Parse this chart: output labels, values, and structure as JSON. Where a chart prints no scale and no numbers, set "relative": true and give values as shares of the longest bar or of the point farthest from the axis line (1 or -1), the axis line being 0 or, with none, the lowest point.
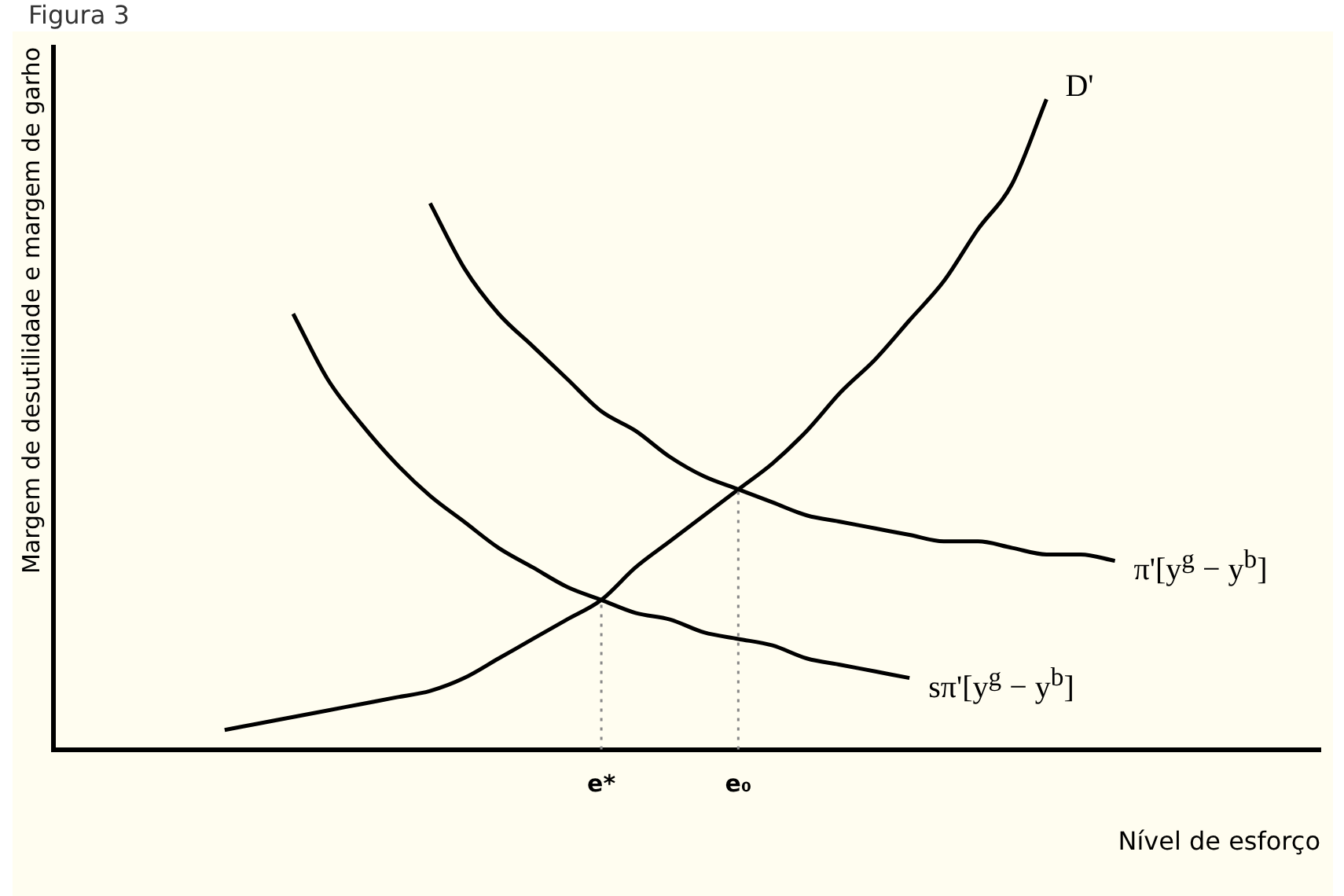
{
  "chart_data": {
    "type": "line",
    "title": "Figura 3",
    "xlabel": "Nível de esforço",
    "ylabel": "Margem de desutilidade e margem de garho",
    "relative": true,
    "legend": false,
    "grid": false,
    "marker": "none",
    "line_style": "solid",
    "categories": [
      null,
      null,
      null,
      null,
      null,
      null,
      null,
      null,
      null,
      null,
      null,
      null,
      null,
      null,
      null,
      null,
      "e*",
      null,
      null,
      null,
      "e₀",
      null,
      null,
      null,
      null,
      null,
      null,
      null,
      null,
      null,
      null,
      null,
      null,
      null,
      null,
      null,
      null,
      null
    ],
    "series": [
      {
        "name": "D'",
        "color": "#000000",
        "values": [
          null,
          null,
          null,
          null,
          null,
          0.03,
          0.04,
          0.05,
          0.06,
          0.07,
          0.08,
          0.09,
          0.11,
          0.14,
          0.17,
          0.2,
          0.23,
          0.28,
          0.32,
          0.36,
          0.4,
          0.44,
          0.49,
          0.55,
          0.6,
          0.66,
          0.72,
          0.8,
          0.87,
          1,
          null,
          null,
          null,
          null,
          null,
          null,
          null,
          null
        ]
      },
      {
        "name": "π'[y$^{g}$ − y$^{b}$]",
        "color": "#000000",
        "values": [
          null,
          null,
          null,
          null,
          null,
          null,
          null,
          null,
          null,
          null,
          null,
          0.84,
          0.74,
          0.67,
          0.62,
          0.57,
          0.52,
          0.49,
          0.45,
          0.42,
          0.4,
          0.38,
          0.36,
          0.35,
          0.34,
          0.33,
          0.32,
          0.32,
          0.31,
          0.3,
          0.3,
          0.29,
          null,
          null,
          null,
          null,
          null,
          null
        ]
      },
      {
        "name": "sπ'[y$^{g}$ − y$^{b}$]",
        "color": "#000000",
        "values": [
          null,
          null,
          null,
          null,
          null,
          null,
          null,
          0.67,
          0.57,
          0.5,
          0.44,
          0.39,
          0.35,
          0.31,
          0.28,
          0.25,
          0.23,
          0.21,
          0.2,
          0.18,
          0.17,
          0.16,
          0.14,
          0.13,
          0.12,
          0.11,
          null,
          null,
          null,
          null,
          null,
          null,
          null,
          null,
          null,
          null,
          null,
          null
        ]
      }
    ],
    "ref_lines": [
      {
        "axis": "x",
        "value": "e*",
        "line_style": "dotted",
        "color": "#888888"
      },
      {
        "axis": "x",
        "value": "e₀",
        "line_style": "dotted",
        "color": "#888888"
      }
    ]
  }
}
